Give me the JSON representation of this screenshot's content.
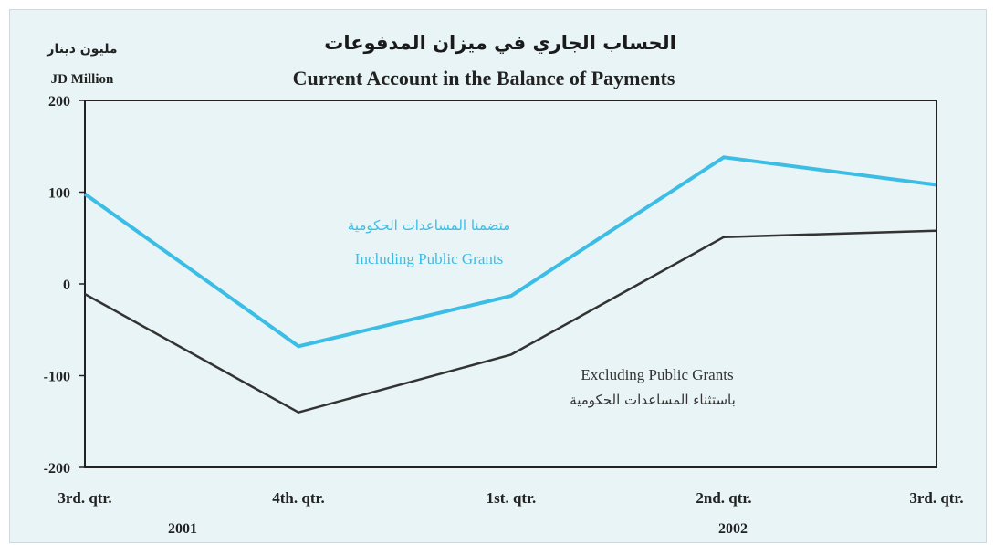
{
  "chart_data": {
    "type": "line",
    "title_ar": "الحساب الجاري في ميزان المدفوعات",
    "title": "Current Account in the Balance of Payments",
    "ylabel_ar": "مليون دينار",
    "ylabel": "JD Million",
    "ylim": [
      -200,
      200
    ],
    "yticks": [
      "200",
      "100",
      "0",
      "-100",
      "-200"
    ],
    "categories": [
      "3rd. qtr.",
      "4th. qtr.",
      "1st. qtr.",
      "2nd. qtr.",
      "3rd. qtr."
    ],
    "years": [
      "2001",
      "2002"
    ],
    "grid": false,
    "series": [
      {
        "name": "Including Public Grants",
        "name_ar": "متضمنا المساعدات الحكومية",
        "color": "#3cbde6",
        "values": [
          98,
          -68,
          -13,
          138,
          108
        ]
      },
      {
        "name": "Excluding Public Grants",
        "name_ar": "باستثناء المساعدات الحكومية",
        "color": "#333333",
        "values": [
          -11,
          -140,
          -77,
          51,
          58
        ]
      }
    ]
  }
}
